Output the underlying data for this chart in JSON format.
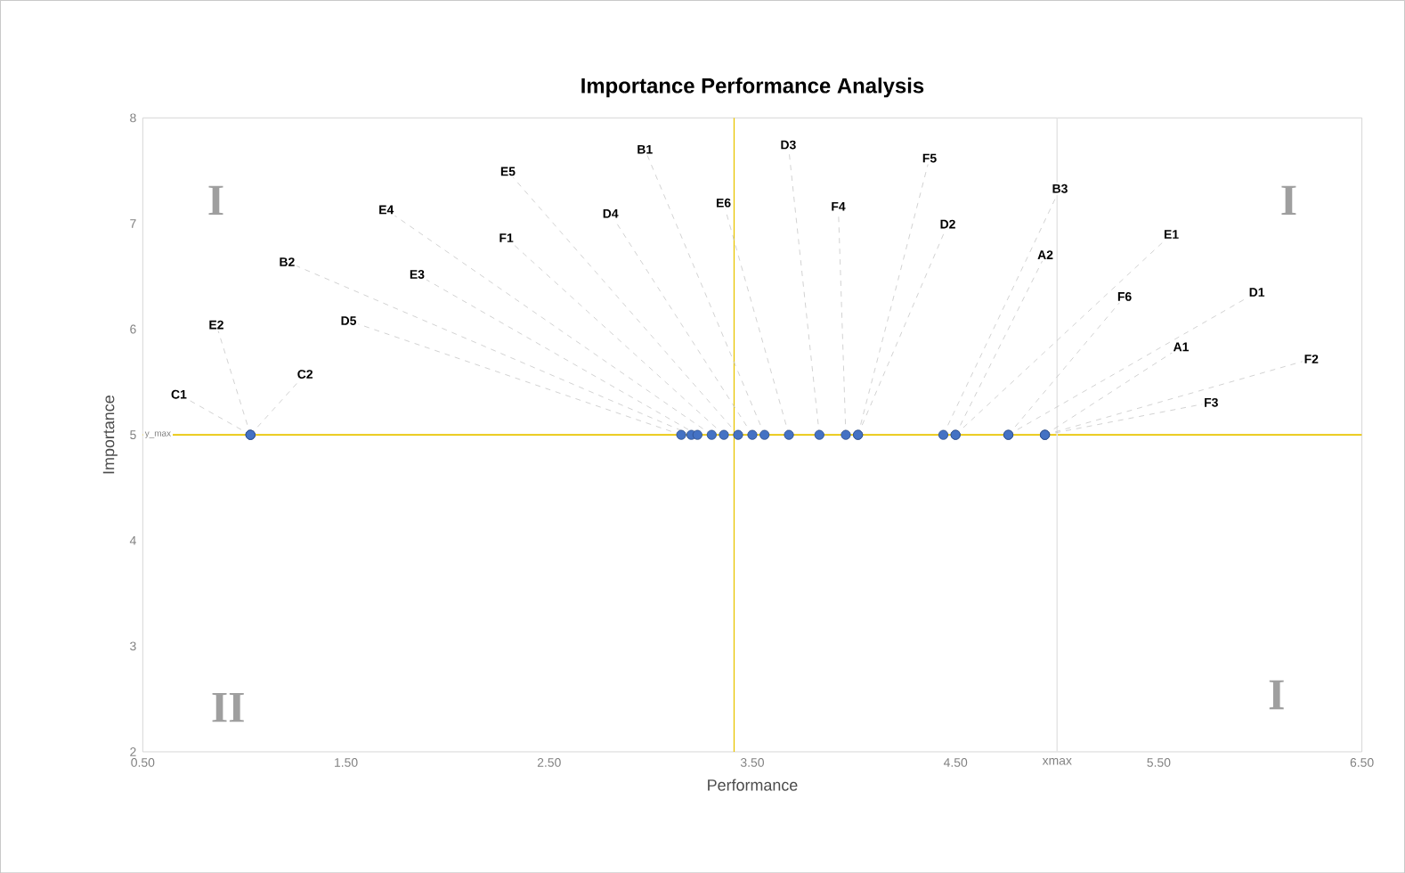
{
  "chart_data": {
    "type": "scatter",
    "title": "Importance Performance Analysis",
    "xlabel": "Performance",
    "ylabel": "Importance",
    "color": "#4472c4",
    "marker": "circle",
    "x": [
      1.03,
      1.03,
      1.03,
      3.15,
      3.2,
      3.23,
      3.3,
      3.36,
      3.43,
      3.5,
      3.56,
      3.68,
      3.83,
      3.96,
      4.02,
      4.02,
      4.44,
      4.5,
      4.5,
      4.76,
      4.76,
      4.94,
      4.94,
      4.94
    ],
    "values": [
      5,
      5,
      5,
      5,
      5,
      5,
      5,
      5,
      5,
      5,
      5,
      5,
      5,
      5,
      5,
      5,
      5,
      5,
      5,
      5,
      5,
      5,
      5,
      5
    ],
    "value_labels": [
      "C1",
      "C2",
      "E2",
      "D5",
      "B2",
      "E3",
      "E4",
      "F1",
      "E5",
      "D4",
      "B1",
      "E6",
      "D3",
      "F4",
      "F5",
      "D2",
      "B3",
      "A2",
      "E1",
      "F6",
      "D1",
      "A1",
      "F2",
      "F3"
    ],
    "xlim": [
      0.5,
      6.5
    ],
    "ylim": [
      2,
      8
    ],
    "xticks": [
      {
        "value": 0.5,
        "label": "0.50"
      },
      {
        "value": 1.5,
        "label": "1.50"
      },
      {
        "value": 2.5,
        "label": "2.50"
      },
      {
        "value": 3.5,
        "label": "3.50"
      },
      {
        "value": 4.5,
        "label": "4.50"
      },
      {
        "value": 5.0,
        "label": "xmax"
      },
      {
        "value": 5.5,
        "label": "5.50"
      },
      {
        "value": 6.5,
        "label": "6.50"
      }
    ],
    "yticks": [
      2,
      3,
      4,
      5,
      6,
      7,
      8
    ],
    "ref_lines": [
      {
        "axis": "x",
        "value": 3.41,
        "color": "#e8c400"
      },
      {
        "axis": "y",
        "value": 5,
        "label": "y_max",
        "color": "#e8c400"
      },
      {
        "axis": "x",
        "value": 5.0,
        "color": "#e6e6e6"
      }
    ],
    "annotations": [
      "I",
      "I",
      "II",
      "I"
    ]
  }
}
